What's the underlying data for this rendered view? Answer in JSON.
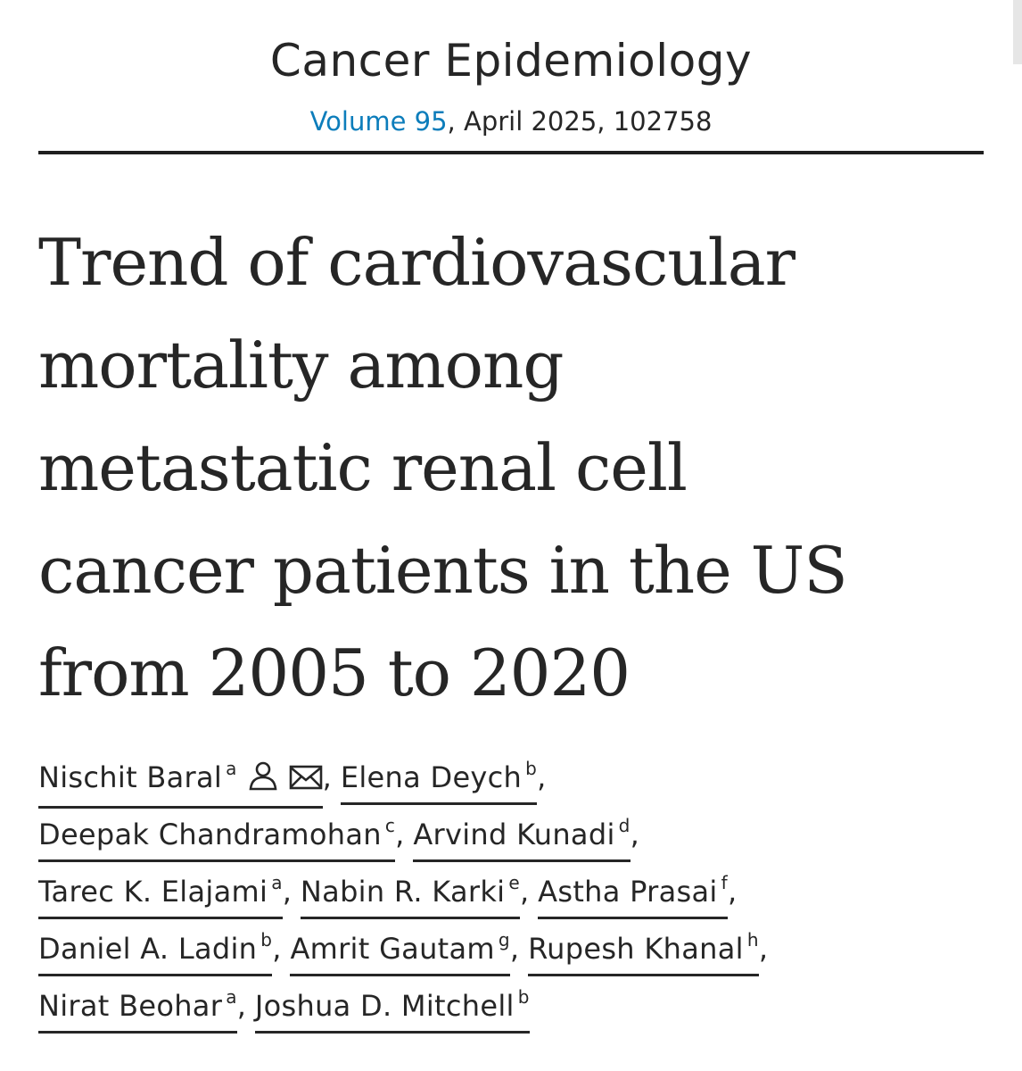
{
  "journal": {
    "name": "Cancer Epidemiology",
    "volume_link": "Volume 95",
    "issue_info": ", April 2025, 102758",
    "link_color": "#0c7dbb"
  },
  "article": {
    "title_lines": [
      "Trend of cardiovascular",
      "mortality among",
      "metastatic renal cell",
      "cancer patients in the US",
      "from 2005 to 2020"
    ]
  },
  "authors": {
    "lines": [
      [
        {
          "name": "Nischit Baral",
          "aff": "a",
          "icons": [
            "person-icon",
            "envelope-icon"
          ],
          "sep": ","
        },
        {
          "name": "Elena Deych",
          "aff": "b",
          "sep": ","
        }
      ],
      [
        {
          "name": "Deepak Chandramohan",
          "aff": "c",
          "sep": ","
        },
        {
          "name": "Arvind Kunadi",
          "aff": "d",
          "sep": ","
        }
      ],
      [
        {
          "name": "Tarec K. Elajami",
          "aff": "a",
          "sep": ","
        },
        {
          "name": "Nabin R. Karki",
          "aff": "e",
          "sep": ","
        },
        {
          "name": "Astha Prasai",
          "aff": "f",
          "sep": ","
        }
      ],
      [
        {
          "name": "Daniel A. Ladin",
          "aff": "b",
          "sep": ","
        },
        {
          "name": "Amrit Gautam",
          "aff": "g",
          "sep": ","
        },
        {
          "name": "Rupesh Khanal",
          "aff": "h",
          "sep": ","
        }
      ],
      [
        {
          "name": "Nirat Beohar",
          "aff": "a",
          "sep": ","
        },
        {
          "name": "Joshua D. Mitchell",
          "aff": "b",
          "sep": ""
        }
      ]
    ]
  }
}
